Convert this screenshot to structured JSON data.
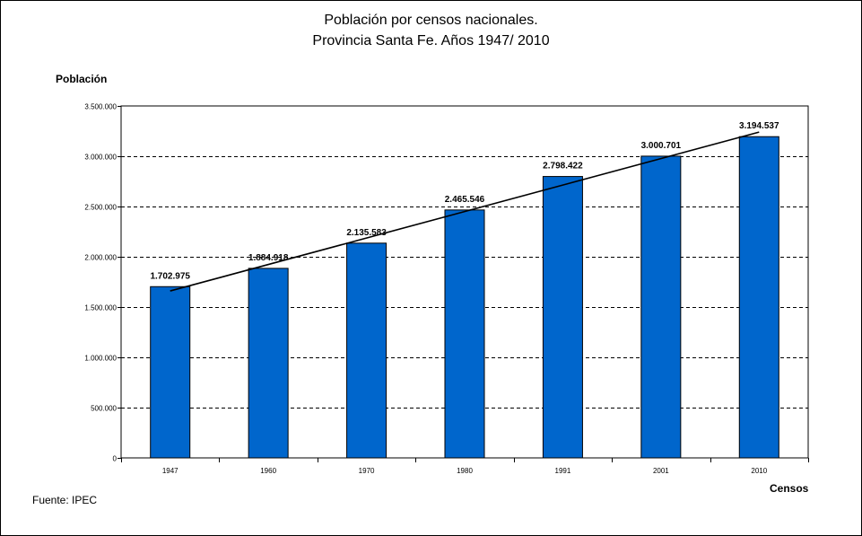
{
  "chart_data": {
    "type": "bar",
    "title": [
      "Población por censos nacionales.",
      "Provincia Santa Fe. Años 1947/ 2010"
    ],
    "xlabel": "Censos",
    "ylabel": "Población",
    "categories": [
      "1947",
      "1960",
      "1970",
      "1980",
      "1991",
      "2001",
      "2010"
    ],
    "values": [
      1702975,
      1884918,
      2135583,
      2465546,
      2798422,
      3000701,
      3194537
    ],
    "value_labels": [
      "1.702.975",
      "1.884.918",
      "2.135.583",
      "2.465.546",
      "2.798.422",
      "3.000.701",
      "3.194.537"
    ],
    "ylim": [
      0,
      3500000
    ],
    "yticks": [
      0,
      500000,
      1000000,
      1500000,
      2000000,
      2500000,
      3000000,
      3500000
    ],
    "ytick_labels": [
      "0",
      "500.000",
      "1.000.000",
      "1.500.000",
      "2.000.000",
      "2.500.000",
      "3.000.000",
      "3.500.000"
    ],
    "trendline": {
      "type": "linear",
      "start_value": 1660000,
      "end_value": 3240000
    },
    "grid": true,
    "legend": "none",
    "colors": {
      "bar": "#0066CC",
      "bar_edge": "#000000",
      "trendline": "#000000",
      "grid": "#000000"
    }
  },
  "source": "Fuente: IPEC"
}
